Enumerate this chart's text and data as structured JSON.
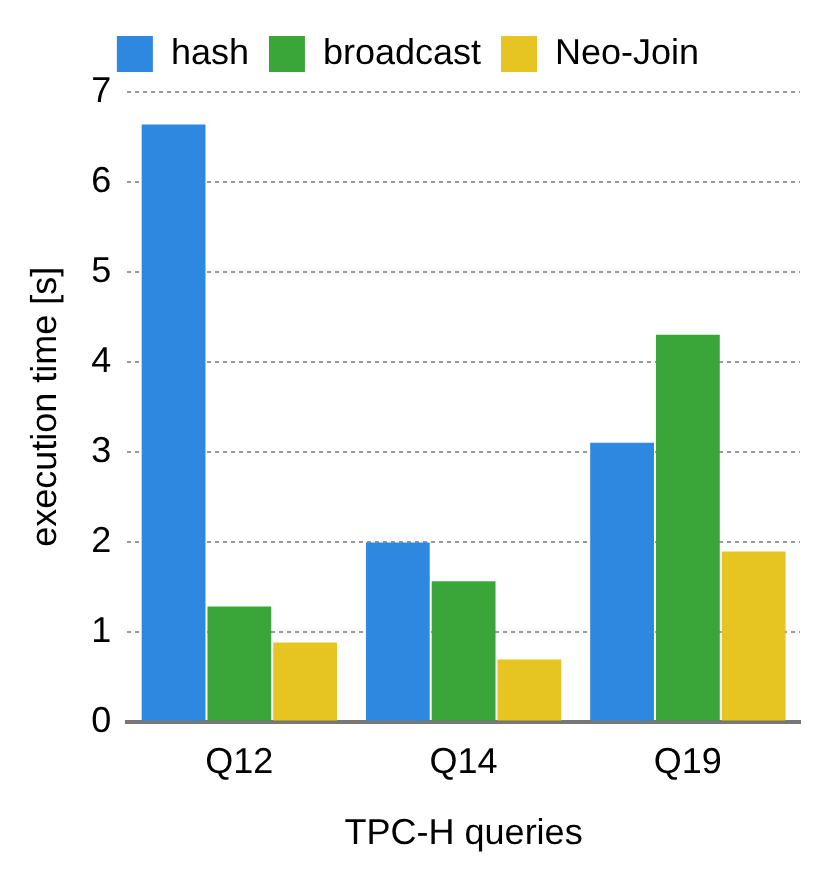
{
  "chart_data": {
    "type": "bar",
    "xlabel": "TPC-H queries",
    "ylabel": "execution time [s]",
    "categories": [
      "Q12",
      "Q14",
      "Q19"
    ],
    "series": [
      {
        "name": "hash",
        "color": "#2f88e0",
        "values": [
          6.64,
          1.99,
          3.1
        ]
      },
      {
        "name": "broadcast",
        "color": "#3aa63a",
        "values": [
          1.28,
          1.56,
          4.3
        ]
      },
      {
        "name": "Neo-Join",
        "color": "#e6c422",
        "values": [
          0.88,
          0.69,
          1.89
        ]
      }
    ],
    "ylim": [
      0,
      7
    ],
    "yticks": [
      0,
      1,
      2,
      3,
      4,
      5,
      6,
      7
    ],
    "grid": "y",
    "legend": "top"
  }
}
